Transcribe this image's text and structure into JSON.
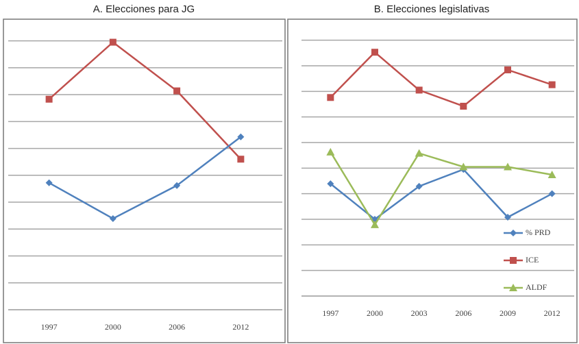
{
  "chart_data": [
    {
      "type": "line",
      "title": "A. Elecciones para JG",
      "categories": [
        "1997",
        "2000",
        "2006",
        "2012"
      ],
      "series": [
        {
          "color": "#c0504d",
          "marker": "square",
          "values": [
            7.83,
            9.95,
            8.14,
            5.6
          ]
        },
        {
          "color": "#4f81bd",
          "marker": "diamond",
          "values": [
            4.72,
            3.39,
            4.62,
            6.43
          ]
        }
      ],
      "ylim": [
        0,
        10.5
      ],
      "yticks": [
        0,
        1,
        2,
        3,
        4,
        5,
        6,
        7,
        8,
        9,
        10
      ],
      "grid": true,
      "legend": false
    },
    {
      "type": "line",
      "title": "B. Elecciones legislativas",
      "categories": [
        "1997",
        "2000",
        "2003",
        "2006",
        "2009",
        "2012"
      ],
      "series": [
        {
          "name": "% PRD",
          "color": "#4f81bd",
          "marker": "diamond",
          "values": [
            4.39,
            3.0,
            4.29,
            4.95,
            3.08,
            4.0
          ]
        },
        {
          "name": "ICE",
          "color": "#c0504d",
          "marker": "square",
          "values": [
            7.76,
            9.53,
            8.05,
            7.42,
            8.84,
            8.26
          ]
        },
        {
          "name": "ALDF",
          "color": "#9bbb59",
          "marker": "triangle",
          "values": [
            5.63,
            2.79,
            5.58,
            5.05,
            5.05,
            4.74
          ]
        }
      ],
      "ylim": [
        0,
        10.5
      ],
      "yticks": [
        0,
        1,
        2,
        3,
        4,
        5,
        6,
        7,
        8,
        9,
        10
      ],
      "grid": true,
      "legend": "lower right"
    }
  ]
}
